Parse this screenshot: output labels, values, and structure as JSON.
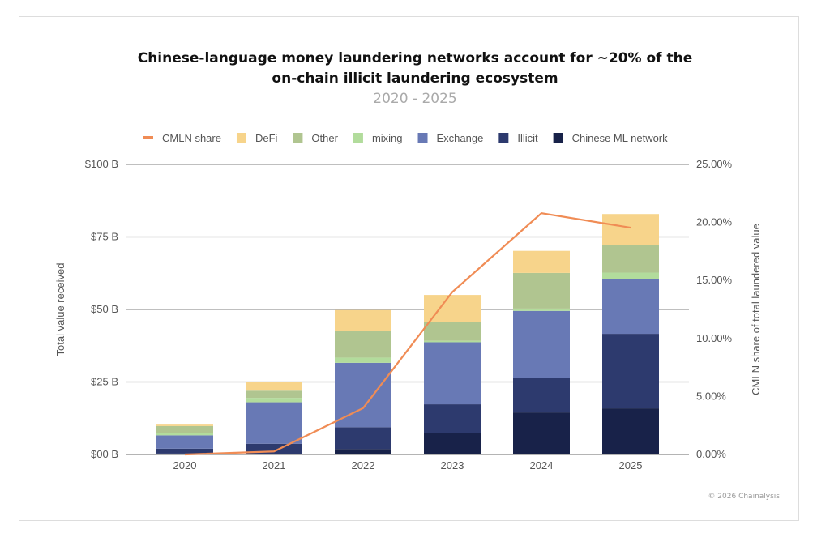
{
  "chart_data": {
    "type": "bar",
    "stacked": true,
    "title": "Chinese-language money laundering networks account for ~20% of the on-chain illicit laundering ecosystem",
    "title_lines": [
      "Chinese-language money laundering networks account for ~20% of the",
      "on-chain illicit laundering ecosystem"
    ],
    "subtitle": "2020 - 2025",
    "categories": [
      "2020",
      "2021",
      "2022",
      "2023",
      "2024",
      "2025"
    ],
    "ylabel": "Total value received",
    "y2label": "CMLN share of total laundered value",
    "ylim": [
      0,
      100
    ],
    "y2lim": [
      0,
      25
    ],
    "yticks": [
      "$00 B",
      "$25 B",
      "$50 B",
      "$75 B",
      "$100 B"
    ],
    "y2ticks": [
      "0.00%",
      "5.00%",
      "10.00%",
      "15.00%",
      "20.00%",
      "25.00%"
    ],
    "grid": true,
    "legend_position": "top",
    "series": [
      {
        "name": "Chinese ML network",
        "color": "#182249",
        "values": [
          0.3,
          0.2,
          1.9,
          7.5,
          14.5,
          15.9
        ]
      },
      {
        "name": "Illicit",
        "color": "#2d3a6e",
        "values": [
          1.7,
          3.5,
          7.5,
          9.8,
          12.0,
          25.7
        ]
      },
      {
        "name": "Exchange",
        "color": "#6879b5",
        "values": [
          4.6,
          14.3,
          22.2,
          21.4,
          23.0,
          18.9
        ]
      },
      {
        "name": "mixing",
        "color": "#b2dc9c",
        "values": [
          0.9,
          1.5,
          1.8,
          0.5,
          0.8,
          2.2
        ]
      },
      {
        "name": "Other",
        "color": "#b0c590",
        "values": [
          2.3,
          2.5,
          9.1,
          6.5,
          12.3,
          9.5
        ]
      },
      {
        "name": "DeFi",
        "color": "#f7d48b",
        "values": [
          0.5,
          3.0,
          7.3,
          9.3,
          7.6,
          10.7
        ]
      }
    ],
    "line_series": {
      "name": "CMLN share",
      "color": "#f08c55",
      "axis": "right",
      "values": [
        0.0,
        0.26,
        4.0,
        14.0,
        20.8,
        19.55
      ]
    },
    "legend": [
      "CMLN share",
      "DeFi",
      "Other",
      "mixing",
      "Exchange",
      "Illicit",
      "Chinese ML network"
    ]
  },
  "credit": "© 2026 Chainalysis"
}
